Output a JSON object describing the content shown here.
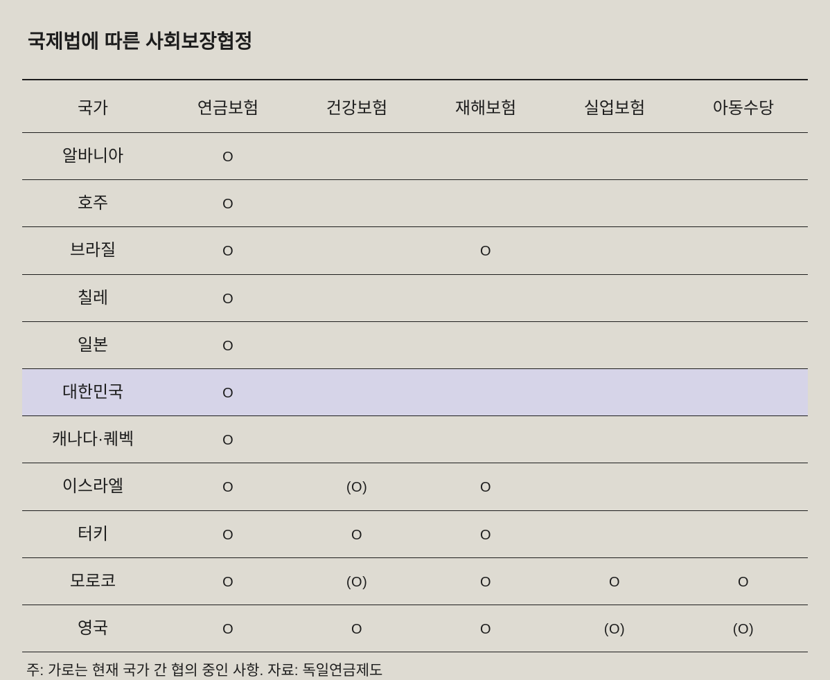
{
  "title": "국제법에 따른 사회보장협정",
  "table": {
    "type": "table",
    "columns": [
      "국가",
      "연금보험",
      "건강보험",
      "재해보험",
      "실업보험",
      "아동수당"
    ],
    "rows": [
      {
        "country": "알바니아",
        "cells": [
          "O",
          "",
          "",
          "",
          ""
        ],
        "highlight": false
      },
      {
        "country": "호주",
        "cells": [
          "O",
          "",
          "",
          "",
          ""
        ],
        "highlight": false
      },
      {
        "country": "브라질",
        "cells": [
          "O",
          "",
          "O",
          "",
          ""
        ],
        "highlight": false
      },
      {
        "country": "칠레",
        "cells": [
          "O",
          "",
          "",
          "",
          ""
        ],
        "highlight": false
      },
      {
        "country": "일본",
        "cells": [
          "O",
          "",
          "",
          "",
          ""
        ],
        "highlight": false
      },
      {
        "country": "대한민국",
        "cells": [
          "O",
          "",
          "",
          "",
          ""
        ],
        "highlight": true
      },
      {
        "country": "캐나다·퀘벡",
        "cells": [
          "O",
          "",
          "",
          "",
          ""
        ],
        "highlight": false
      },
      {
        "country": "이스라엘",
        "cells": [
          "O",
          "(O)",
          "O",
          "",
          ""
        ],
        "highlight": false
      },
      {
        "country": "터키",
        "cells": [
          "O",
          "O",
          "O",
          "",
          ""
        ],
        "highlight": false
      },
      {
        "country": "모로코",
        "cells": [
          "O",
          "(O)",
          "O",
          "O",
          "O"
        ],
        "highlight": false
      },
      {
        "country": "영국",
        "cells": [
          "O",
          "O",
          "O",
          "(O)",
          "(O)"
        ],
        "highlight": false
      }
    ],
    "background_color": "#dedbd2",
    "highlight_color": "#d6d4e8",
    "border_color": "#1c1c1c",
    "header_fontsize": 24,
    "cell_fontsize": 24,
    "title_fontsize": 28,
    "footnote_fontsize": 21
  },
  "footnote": "주: 가로는 현재 국가 간 협의 중인 사항. 자료: 독일연금제도"
}
